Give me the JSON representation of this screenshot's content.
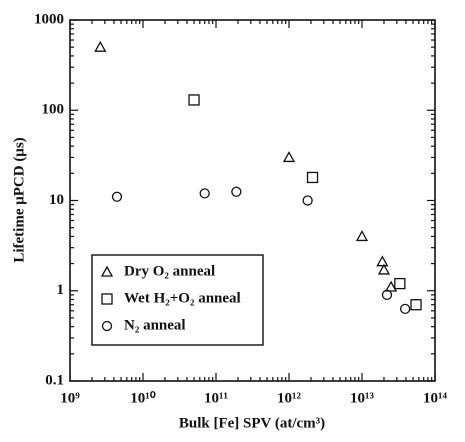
{
  "chart_data": {
    "type": "scatter",
    "x_label": "Bulk [Fe] SPV (at/cm³)",
    "y_label": "Lifetime μPCD (μs)",
    "log_x": true,
    "log_y": true,
    "xlim": [
      1000000000.0,
      100000000000000.0
    ],
    "ylim": [
      0.1,
      1000
    ],
    "xticks": [
      {
        "value": 1000000000.0,
        "label": "10⁹"
      },
      {
        "value": 10000000000.0,
        "label": "10¹⁰"
      },
      {
        "value": 100000000000.0,
        "label": "10¹¹"
      },
      {
        "value": 1000000000000.0,
        "label": "10¹²"
      },
      {
        "value": 10000000000000.0,
        "label": "10¹³"
      },
      {
        "value": 100000000000000.0,
        "label": "10¹⁴"
      }
    ],
    "yticks": [
      0.1,
      1,
      10,
      100,
      1000
    ],
    "legend": "bottom-left",
    "series": [
      {
        "name": "Dry O₂ anneal",
        "marker": "triangle",
        "color": "#111111",
        "x": [
          2600000000.0,
          1000000000000.0,
          10000000000000.0,
          19000000000000.0,
          20000000000000.0,
          25000000000000.0
        ],
        "values": [
          500,
          30,
          4,
          2.1,
          1.7,
          1.1
        ]
      },
      {
        "name": "Wet H₂+O₂ anneal",
        "marker": "square",
        "color": "#111111",
        "x": [
          50000000000.0,
          2100000000000.0,
          33000000000000.0,
          55000000000000.0
        ],
        "values": [
          130,
          18,
          1.2,
          0.7
        ]
      },
      {
        "name": "N₂ anneal",
        "marker": "circle",
        "color": "#111111",
        "x": [
          4400000000.0,
          70000000000.0,
          190000000000.0,
          1800000000000.0,
          22000000000000.0,
          39000000000000.0
        ],
        "values": [
          11,
          12,
          12.5,
          10,
          0.9,
          0.63
        ]
      }
    ]
  }
}
